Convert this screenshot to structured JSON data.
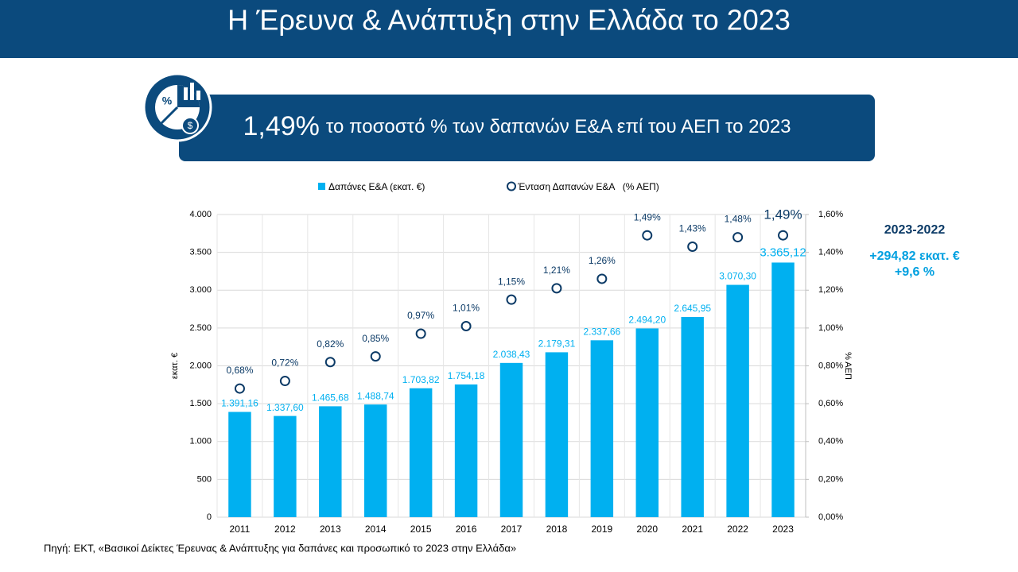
{
  "title": "Η Έρευνα & Ανάπτυξη στην Ελλάδα το 2023",
  "banner": {
    "highlight": "1,49%",
    "text": "το ποσοστό % των δαπανών Ε&Α επί του ΑΕΠ το 2023"
  },
  "side_note": {
    "heading": "2023-2022",
    "lines": [
      "+294,82 εκατ. €",
      "+9,6 %"
    ]
  },
  "source": "Πηγή: ΕΚΤ, «Βασικοί Δείκτες Έρευνας & Ανάπτυξης για δαπάνες και προσωπικό το 2023 στην Ελλάδα»",
  "chart_data": {
    "type": "bar_line",
    "categories": [
      "2011",
      "2012",
      "2013",
      "2014",
      "2015",
      "2016",
      "2017",
      "2018",
      "2019",
      "2020",
      "2021",
      "2022",
      "2023"
    ],
    "ylabel": "εκατ. €",
    "y2label": "% ΑΕΠ",
    "ylim": [
      0,
      4000
    ],
    "yticks": [
      0,
      500,
      {
        "value": 1000,
        "label": "1.000"
      },
      {
        "value": 1500,
        "label": "1.500"
      },
      {
        "value": 2000,
        "label": "2.000"
      },
      {
        "value": 2500,
        "label": "2.500"
      },
      {
        "value": 3000,
        "label": "3.000"
      },
      {
        "value": 3500,
        "label": "3.500"
      },
      {
        "value": 4000,
        "label": "4.000"
      }
    ],
    "y2lim": [
      0,
      1.6
    ],
    "y2ticks": [
      {
        "value": 0,
        "label": "0,00%"
      },
      {
        "value": 0.2,
        "label": "0,20%"
      },
      {
        "value": 0.4,
        "label": "0,40%"
      },
      {
        "value": 0.6,
        "label": "0,60%"
      },
      {
        "value": 0.8,
        "label": "0,80%"
      },
      {
        "value": 1.0,
        "label": "1,00%"
      },
      {
        "value": 1.2,
        "label": "1,20%"
      },
      {
        "value": 1.4,
        "label": "1,40%"
      },
      {
        "value": 1.6,
        "label": "1,60%"
      }
    ],
    "series": [
      {
        "name": "Δαπάνες Ε&Α (εκατ. €)",
        "type": "bar",
        "color": "#00b0f0",
        "values": [
          1391.16,
          1337.6,
          1465.68,
          1488.74,
          1703.82,
          1754.18,
          2038.43,
          2179.31,
          2337.66,
          2494.2,
          2645.95,
          3070.3,
          3365.12
        ],
        "value_labels": [
          "1.391,16",
          "1.337,60",
          "1.465,68",
          "1.488,74",
          "1.703,82",
          "1.754,18",
          "2.038,43",
          "2.179,31",
          "2.337,66",
          "2.494,20",
          "2.645,95",
          "3.070,30",
          "3.365,12"
        ]
      },
      {
        "name": "Ένταση Δαπανών Ε&Α   (% ΑΕΠ)",
        "type": "marker",
        "axis": "y2",
        "color": "#0b3a66",
        "values": [
          0.68,
          0.72,
          0.82,
          0.85,
          0.97,
          1.01,
          1.15,
          1.21,
          1.26,
          1.49,
          1.43,
          1.48,
          1.49
        ],
        "value_labels": [
          "0,68%",
          "0,72%",
          "0,82%",
          "0,85%",
          "0,97%",
          "1,01%",
          "1,15%",
          "1,21%",
          "1,26%",
          "1,49%",
          "1,43%",
          "1,48%",
          "1,49%"
        ]
      }
    ]
  }
}
